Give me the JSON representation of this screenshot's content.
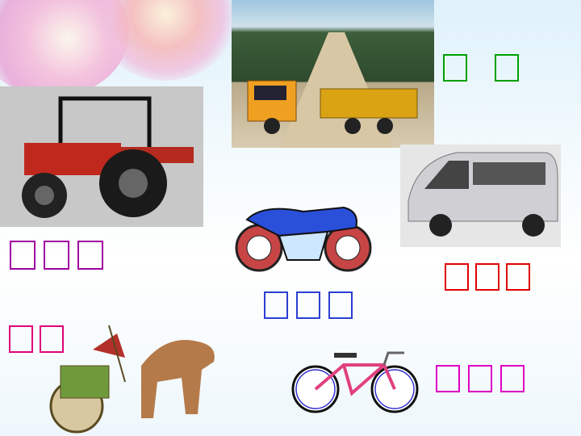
{
  "labels": {
    "truck": {
      "color": "#00a000",
      "count": 2
    },
    "tractor": {
      "color": "#a000a0",
      "count": 3
    },
    "motorcycle": {
      "color": "#2a3fd0",
      "count": 3
    },
    "van": {
      "color": "#e00000",
      "count": 3
    },
    "chariot": {
      "color": "#e0007a",
      "count": 2
    },
    "bicycle": {
      "color": "#e000c0",
      "count": 3
    }
  },
  "images": [
    "truck-photo",
    "tractor-photo",
    "van-photo",
    "motorcycle-illustration",
    "bicycle-illustration",
    "chariot-illustration"
  ]
}
